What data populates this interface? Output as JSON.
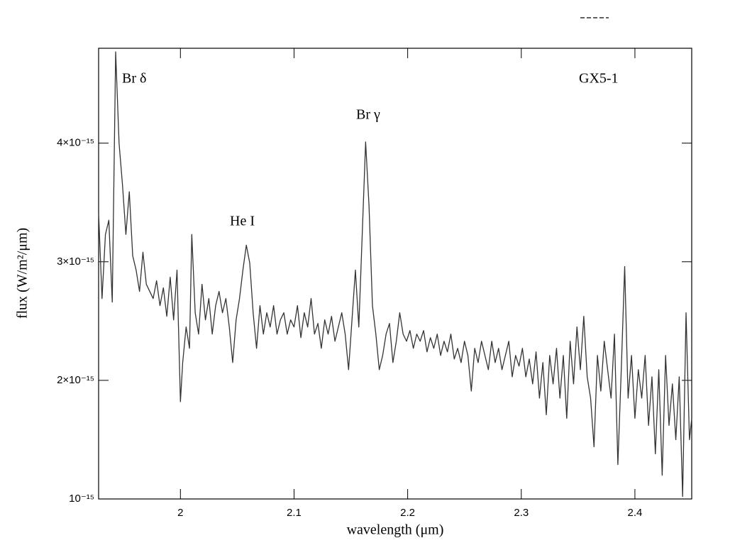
{
  "chart_data": {
    "type": "line",
    "x_label": "wavelength (μm)",
    "y_label": "flux (W/m²/μm)",
    "annotations": [
      "Br δ",
      "GX5-1",
      "Br γ",
      "He I"
    ],
    "color": "#333333",
    "xlim": [
      1.928,
      2.45
    ],
    "ylim": [
      1e-15,
      4.8e-15
    ],
    "xticks": [
      2,
      2.1,
      2.2,
      2.3,
      2.4
    ],
    "yticks": [
      {
        "value": 1e-15,
        "label": "10⁻¹⁵"
      },
      {
        "value": 2e-15,
        "label": "2×10⁻¹⁵"
      },
      {
        "value": 3e-15,
        "label": "3×10⁻¹⁵"
      },
      {
        "value": 4e-15,
        "label": "4×10⁻¹⁵"
      }
    ],
    "x": [
      1.928,
      1.931,
      1.934,
      1.937,
      1.94,
      1.943,
      1.946,
      1.949,
      1.952,
      1.955,
      1.958,
      1.961,
      1.964,
      1.967,
      1.97,
      1.973,
      1.976,
      1.979,
      1.982,
      1.985,
      1.988,
      1.991,
      1.994,
      1.997,
      2.0,
      2.002,
      2.005,
      2.008,
      2.01,
      2.013,
      2.016,
      2.019,
      2.022,
      2.025,
      2.028,
      2.031,
      2.034,
      2.037,
      2.04,
      2.043,
      2.046,
      2.049,
      2.052,
      2.055,
      2.058,
      2.061,
      2.064,
      2.067,
      2.07,
      2.073,
      2.076,
      2.079,
      2.082,
      2.085,
      2.088,
      2.091,
      2.094,
      2.097,
      2.1,
      2.103,
      2.106,
      2.109,
      2.112,
      2.115,
      2.118,
      2.121,
      2.124,
      2.127,
      2.13,
      2.133,
      2.136,
      2.139,
      2.142,
      2.145,
      2.148,
      2.151,
      2.154,
      2.157,
      2.16,
      2.163,
      2.166,
      2.169,
      2.172,
      2.175,
      2.178,
      2.181,
      2.184,
      2.187,
      2.19,
      2.193,
      2.196,
      2.199,
      2.202,
      2.205,
      2.208,
      2.211,
      2.214,
      2.217,
      2.22,
      2.223,
      2.226,
      2.229,
      2.232,
      2.235,
      2.238,
      2.241,
      2.244,
      2.247,
      2.25,
      2.253,
      2.256,
      2.259,
      2.262,
      2.265,
      2.268,
      2.271,
      2.274,
      2.277,
      2.28,
      2.283,
      2.286,
      2.289,
      2.292,
      2.295,
      2.298,
      2.301,
      2.304,
      2.307,
      2.31,
      2.313,
      2.316,
      2.319,
      2.322,
      2.325,
      2.328,
      2.331,
      2.334,
      2.337,
      2.34,
      2.343,
      2.346,
      2.349,
      2.352,
      2.355,
      2.358,
      2.361,
      2.364,
      2.367,
      2.37,
      2.373,
      2.376,
      2.379,
      2.382,
      2.385,
      2.388,
      2.391,
      2.394,
      2.397,
      2.4,
      2.403,
      2.406,
      2.409,
      2.412,
      2.415,
      2.418,
      2.421,
      2.424,
      2.427,
      2.43,
      2.433,
      2.436,
      2.439,
      2.442,
      2.445,
      2.448,
      2.45
    ],
    "values": [
      3.41e-15,
      2.69e-15,
      3.23e-15,
      3.35e-15,
      2.66e-15,
      4.77e-15,
      4e-15,
      3.65e-15,
      3.23e-15,
      3.59e-15,
      3.05e-15,
      2.93e-15,
      2.75e-15,
      3.08e-15,
      2.81e-15,
      2.75e-15,
      2.69e-15,
      2.84e-15,
      2.63e-15,
      2.78e-15,
      2.54e-15,
      2.87e-15,
      2.51e-15,
      2.93e-15,
      1.82e-15,
      2.15e-15,
      2.45e-15,
      2.27e-15,
      3.23e-15,
      2.57e-15,
      2.39e-15,
      2.81e-15,
      2.51e-15,
      2.69e-15,
      2.39e-15,
      2.63e-15,
      2.75e-15,
      2.57e-15,
      2.69e-15,
      2.45e-15,
      2.15e-15,
      2.51e-15,
      2.69e-15,
      2.93e-15,
      3.14e-15,
      2.99e-15,
      2.57e-15,
      2.27e-15,
      2.63e-15,
      2.39e-15,
      2.57e-15,
      2.45e-15,
      2.63e-15,
      2.39e-15,
      2.51e-15,
      2.57e-15,
      2.39e-15,
      2.51e-15,
      2.45e-15,
      2.63e-15,
      2.36e-15,
      2.57e-15,
      2.45e-15,
      2.69e-15,
      2.39e-15,
      2.48e-15,
      2.27e-15,
      2.51e-15,
      2.39e-15,
      2.54e-15,
      2.33e-15,
      2.45e-15,
      2.57e-15,
      2.39e-15,
      2.09e-15,
      2.51e-15,
      2.93e-15,
      2.45e-15,
      3.23e-15,
      4.01e-15,
      3.47e-15,
      2.63e-15,
      2.39e-15,
      2.09e-15,
      2.21e-15,
      2.39e-15,
      2.48e-15,
      2.15e-15,
      2.33e-15,
      2.57e-15,
      2.39e-15,
      2.33e-15,
      2.42e-15,
      2.27e-15,
      2.39e-15,
      2.33e-15,
      2.42e-15,
      2.24e-15,
      2.36e-15,
      2.27e-15,
      2.39e-15,
      2.21e-15,
      2.33e-15,
      2.24e-15,
      2.39e-15,
      2.18e-15,
      2.27e-15,
      2.15e-15,
      2.33e-15,
      2.21e-15,
      1.91e-15,
      2.27e-15,
      2.15e-15,
      2.33e-15,
      2.21e-15,
      2.09e-15,
      2.33e-15,
      2.15e-15,
      2.27e-15,
      2.09e-15,
      2.21e-15,
      2.33e-15,
      2.03e-15,
      2.21e-15,
      2.12e-15,
      2.27e-15,
      2.03e-15,
      2.18e-15,
      1.97e-15,
      2.24e-15,
      1.85e-15,
      2.15e-15,
      1.71e-15,
      2.21e-15,
      1.97e-15,
      2.27e-15,
      1.85e-15,
      2.21e-15,
      1.68e-15,
      2.33e-15,
      1.97e-15,
      2.45e-15,
      2.09e-15,
      2.54e-15,
      2.03e-15,
      1.85e-15,
      1.44e-15,
      2.21e-15,
      1.91e-15,
      2.33e-15,
      2.09e-15,
      1.85e-15,
      2.39e-15,
      1.29e-15,
      2.09e-15,
      2.96e-15,
      1.85e-15,
      2.21e-15,
      1.68e-15,
      2.09e-15,
      1.85e-15,
      2.21e-15,
      1.62e-15,
      2.03e-15,
      1.38e-15,
      2.09e-15,
      1.2e-15,
      2.21e-15,
      1.62e-15,
      1.97e-15,
      1.5e-15,
      2.03e-15,
      1.02e-15,
      2.57e-15,
      1.5e-15,
      1.68e-15
    ]
  }
}
